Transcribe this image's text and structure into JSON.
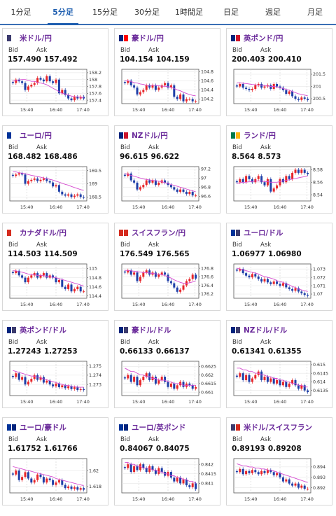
{
  "tabs": [
    "1分足",
    "5分足",
    "15分足",
    "30分足",
    "1時間足",
    "日足",
    "週足",
    "月足"
  ],
  "active_tab": 1,
  "labels": {
    "bid": "Bid",
    "ask": "Ask"
  },
  "colors": {
    "accent": "#1f5fb0",
    "up": "#e8262a",
    "down": "#1f3fa8",
    "ma": "#d54ad0",
    "name": "#6a2a9a"
  },
  "cards": [
    {
      "name": "米ドル/円",
      "bid": "157.490",
      "ask": "157.492",
      "flag": [
        "#3c3b6e",
        "#ffffff"
      ],
      "ticks": [
        "158.2",
        "158",
        "157.8",
        "157.6",
        "157.4"
      ],
      "ymin": 157.3,
      "ymax": 158.3,
      "candles": [
        157.9,
        158.0,
        157.95,
        157.9,
        157.7,
        157.8,
        157.85,
        157.9,
        158.05,
        158.0,
        157.95,
        158.1,
        157.95,
        157.9,
        158.0,
        157.6,
        157.7,
        157.55,
        157.45,
        157.4,
        157.5,
        157.45,
        157.5,
        157.45
      ],
      "ma": [
        157.95,
        157.98,
        157.99,
        158.0,
        158.0,
        157.98,
        157.95,
        157.95,
        157.92,
        157.9,
        157.88,
        157.85,
        157.8,
        157.75,
        157.7,
        157.65,
        157.6,
        157.58,
        157.55,
        157.52,
        157.5,
        157.5,
        157.48,
        157.48
      ]
    },
    {
      "name": "豪ドル/円",
      "bid": "104.154",
      "ask": "104.159",
      "flag": [
        "#00247d",
        "#ff0000"
      ],
      "ticks": [
        "104.8",
        "104.6",
        "104.4",
        "104.2"
      ],
      "ymin": 104.1,
      "ymax": 104.85,
      "candles": [
        104.55,
        104.6,
        104.5,
        104.45,
        104.3,
        104.35,
        104.4,
        104.5,
        104.45,
        104.5,
        104.4,
        104.45,
        104.5,
        104.55,
        104.45,
        104.5,
        104.25,
        104.2,
        104.3,
        104.15,
        104.2,
        104.2,
        104.15,
        104.15
      ],
      "ma": [
        104.6,
        104.6,
        104.58,
        104.56,
        104.55,
        104.53,
        104.52,
        104.5,
        104.5,
        104.5,
        104.5,
        104.49,
        104.48,
        104.48,
        104.47,
        104.46,
        104.43,
        104.4,
        104.38,
        104.35,
        104.32,
        104.3,
        104.28,
        104.27
      ]
    },
    {
      "name": "英ポンド/円",
      "bid": "200.403",
      "ask": "200.410",
      "flag": [
        "#00247d",
        "#cf142b"
      ],
      "ticks": [
        "201.5",
        "201",
        "200.5"
      ],
      "ymin": 200.3,
      "ymax": 201.7,
      "candles": [
        201.0,
        201.1,
        200.95,
        200.9,
        200.85,
        200.9,
        201.05,
        201.1,
        200.95,
        201.0,
        201.05,
        200.9,
        201.1,
        201.0,
        200.95,
        200.85,
        200.7,
        200.8,
        200.6,
        200.5,
        200.45,
        200.55,
        200.5,
        200.45
      ],
      "ma": [
        201.15,
        201.15,
        201.13,
        201.12,
        201.1,
        201.08,
        201.07,
        201.05,
        201.05,
        201.03,
        201.02,
        201.0,
        201.0,
        200.98,
        200.95,
        200.92,
        200.88,
        200.85,
        200.8,
        200.75,
        200.7,
        200.68,
        200.65,
        200.62
      ]
    },
    {
      "name": "ユーロ/円",
      "bid": "168.482",
      "ask": "168.486",
      "flag": [
        "#003399",
        "#ffffff"
      ],
      "ticks": [
        "169.5",
        "169",
        "168.5"
      ],
      "ymin": 168.35,
      "ymax": 169.65,
      "candles": [
        169.3,
        169.35,
        169.4,
        169.35,
        169.0,
        169.1,
        169.15,
        169.2,
        169.1,
        169.15,
        169.2,
        169.1,
        169.05,
        168.9,
        168.95,
        168.7,
        168.6,
        168.55,
        168.6,
        168.5,
        168.55,
        168.6,
        168.5,
        168.48
      ],
      "ma": [
        169.45,
        169.45,
        169.42,
        169.4,
        169.38,
        169.35,
        169.32,
        169.3,
        169.27,
        169.25,
        169.22,
        169.2,
        169.17,
        169.14,
        169.1,
        169.06,
        169.02,
        168.98,
        168.95,
        168.9,
        168.86,
        168.82,
        168.78,
        168.75
      ]
    },
    {
      "name": "NZドル/円",
      "bid": "96.615",
      "ask": "96.622",
      "flag": [
        "#00247d",
        "#cc142b"
      ],
      "ticks": [
        "97.2",
        "97",
        "96.8",
        "96.6"
      ],
      "ymin": 96.5,
      "ymax": 97.25,
      "candles": [
        97.05,
        97.1,
        96.95,
        96.9,
        96.75,
        96.8,
        96.85,
        96.95,
        96.9,
        96.95,
        96.85,
        96.9,
        96.95,
        96.9,
        96.85,
        96.8,
        96.75,
        96.7,
        96.75,
        96.7,
        96.65,
        96.7,
        96.62,
        96.62
      ],
      "ma": [
        97.1,
        97.08,
        97.06,
        97.04,
        97.02,
        97.0,
        96.98,
        96.97,
        96.96,
        96.95,
        96.94,
        96.93,
        96.92,
        96.9,
        96.88,
        96.86,
        96.84,
        96.82,
        96.8,
        96.78,
        96.76,
        96.74,
        96.72,
        96.7
      ]
    },
    {
      "name": "ランド/円",
      "bid": "8.564",
      "ask": "8.573",
      "flag": [
        "#007a4d",
        "#ffb612"
      ],
      "ticks": [
        "8.58",
        "8.56",
        "8.54"
      ],
      "ymin": 8.53,
      "ymax": 8.585,
      "candles": [
        8.56,
        8.565,
        8.56,
        8.57,
        8.565,
        8.56,
        8.565,
        8.57,
        8.56,
        8.555,
        8.565,
        8.545,
        8.55,
        8.555,
        8.565,
        8.56,
        8.57,
        8.565,
        8.575,
        8.58,
        8.575,
        8.58,
        8.575,
        8.573
      ],
      "ma": [
        8.558,
        8.559,
        8.56,
        8.56,
        8.561,
        8.561,
        8.562,
        8.562,
        8.562,
        8.561,
        8.561,
        8.56,
        8.56,
        8.56,
        8.561,
        8.562,
        8.563,
        8.564,
        8.565,
        8.566,
        8.567,
        8.568,
        8.569,
        8.57
      ]
    },
    {
      "name": "カナダドル/円",
      "bid": "114.503",
      "ask": "114.509",
      "flag": [
        "#d52b1e",
        "#ffffff"
      ],
      "ticks": [
        "115",
        "114.8",
        "114.6",
        "114.4"
      ],
      "ymin": 114.35,
      "ymax": 115.1,
      "candles": [
        114.9,
        114.95,
        114.85,
        114.8,
        114.7,
        114.8,
        114.85,
        114.9,
        114.8,
        114.85,
        114.9,
        114.8,
        114.85,
        114.8,
        114.7,
        114.75,
        114.6,
        114.55,
        114.65,
        114.5,
        114.55,
        114.6,
        114.5,
        114.5
      ],
      "ma": [
        114.95,
        114.95,
        114.93,
        114.92,
        114.9,
        114.88,
        114.87,
        114.86,
        114.85,
        114.85,
        114.84,
        114.83,
        114.82,
        114.81,
        114.8,
        114.78,
        114.76,
        114.74,
        114.72,
        114.7,
        114.68,
        114.66,
        114.64,
        114.62
      ]
    },
    {
      "name": "スイスフラン/円",
      "bid": "176.549",
      "ask": "176.565",
      "flag": [
        "#d52b1e",
        "#d52b1e"
      ],
      "ticks": [
        "176.8",
        "176.6",
        "176.4",
        "176.2"
      ],
      "ymin": 176.1,
      "ymax": 176.9,
      "candles": [
        176.7,
        176.75,
        176.65,
        176.7,
        176.5,
        176.6,
        176.7,
        176.75,
        176.65,
        176.7,
        176.6,
        176.65,
        176.7,
        176.65,
        176.5,
        176.45,
        176.35,
        176.25,
        176.3,
        176.4,
        176.5,
        176.55,
        176.65,
        176.56
      ],
      "ma": [
        176.75,
        176.75,
        176.74,
        176.73,
        176.72,
        176.71,
        176.7,
        176.7,
        176.69,
        176.68,
        176.67,
        176.66,
        176.65,
        176.63,
        176.6,
        176.57,
        176.53,
        176.5,
        176.47,
        176.45,
        176.45,
        176.46,
        176.48,
        176.5
      ]
    },
    {
      "name": "ユーロ/ドル",
      "bid": "1.06977",
      "ask": "1.06980",
      "flag": [
        "#003399",
        "#3c3b6e"
      ],
      "ticks": [
        "1.073",
        "1.072",
        "1.071",
        "1.07"
      ],
      "ymin": 1.0695,
      "ymax": 1.0736,
      "candles": [
        1.0728,
        1.073,
        1.0725,
        1.0722,
        1.072,
        1.0724,
        1.0721,
        1.0718,
        1.0715,
        1.0718,
        1.0714,
        1.0712,
        1.0715,
        1.0712,
        1.071,
        1.0713,
        1.0708,
        1.0706,
        1.0704,
        1.0707,
        1.0703,
        1.0701,
        1.0699,
        1.0698
      ],
      "ma": [
        1.0731,
        1.073,
        1.0729,
        1.0728,
        1.0727,
        1.0726,
        1.0725,
        1.0724,
        1.0722,
        1.0721,
        1.072,
        1.0719,
        1.0718,
        1.0716,
        1.0715,
        1.0714,
        1.0712,
        1.0711,
        1.0709,
        1.0708,
        1.0706,
        1.0705,
        1.0704,
        1.0703
      ]
    },
    {
      "name": "英ポンド/ドル",
      "bid": "1.27243",
      "ask": "1.27253",
      "flag": [
        "#00247d",
        "#3c3b6e"
      ],
      "ticks": [
        "1.275",
        "1.274",
        "1.273"
      ],
      "ymin": 1.2718,
      "ymax": 1.2755,
      "candles": [
        1.2738,
        1.2742,
        1.2735,
        1.2738,
        1.273,
        1.2733,
        1.2736,
        1.274,
        1.2735,
        1.2738,
        1.2732,
        1.2734,
        1.273,
        1.2728,
        1.2731,
        1.2727,
        1.2729,
        1.2726,
        1.2728,
        1.2725,
        1.2727,
        1.2724,
        1.2725,
        1.2724
      ],
      "ma": [
        1.2745,
        1.2744,
        1.2743,
        1.2742,
        1.2741,
        1.274,
        1.2739,
        1.2739,
        1.2738,
        1.2737,
        1.2736,
        1.2735,
        1.2734,
        1.2733,
        1.2732,
        1.2731,
        1.273,
        1.2729,
        1.2729,
        1.2728,
        1.2728,
        1.2727,
        1.2727,
        1.2727
      ]
    },
    {
      "name": "豪ドル/ドル",
      "bid": "0.66133",
      "ask": "0.66137",
      "flag": [
        "#00247d",
        "#3c3b6e"
      ],
      "ticks": [
        "0.6625",
        "0.662",
        "0.6615",
        "0.661"
      ],
      "ymin": 0.6608,
      "ymax": 0.6628,
      "candles": [
        0.6618,
        0.662,
        0.6616,
        0.6619,
        0.6614,
        0.6617,
        0.6619,
        0.6621,
        0.6617,
        0.6619,
        0.6615,
        0.6617,
        0.6619,
        0.6616,
        0.6613,
        0.6615,
        0.6612,
        0.6614,
        0.6616,
        0.6613,
        0.6615,
        0.6614,
        0.6612,
        0.6613
      ],
      "ma": [
        0.6624,
        0.6623,
        0.6622,
        0.6622,
        0.6621,
        0.662,
        0.662,
        0.6619,
        0.6619,
        0.6618,
        0.6618,
        0.6617,
        0.6617,
        0.6617,
        0.6616,
        0.6616,
        0.6615,
        0.6615,
        0.6615,
        0.6614,
        0.6614,
        0.6614,
        0.6614,
        0.6614
      ]
    },
    {
      "name": "NZドル/ドル",
      "bid": "0.61341",
      "ask": "0.61355",
      "flag": [
        "#00247d",
        "#3c3b6e"
      ],
      "ticks": [
        "0.615",
        "0.6145",
        "0.614",
        "0.6135"
      ],
      "ymin": 0.6132,
      "ymax": 0.6152,
      "candles": [
        0.6143,
        0.6145,
        0.6141,
        0.6144,
        0.614,
        0.6142,
        0.6144,
        0.6146,
        0.6141,
        0.6143,
        0.614,
        0.6142,
        0.6139,
        0.6141,
        0.6138,
        0.614,
        0.6137,
        0.6139,
        0.6141,
        0.6138,
        0.6136,
        0.6138,
        0.6135,
        0.6134
      ],
      "ma": [
        0.6148,
        0.6148,
        0.6147,
        0.6147,
        0.6146,
        0.6146,
        0.6145,
        0.6145,
        0.6144,
        0.6144,
        0.6143,
        0.6143,
        0.6142,
        0.6142,
        0.6141,
        0.6141,
        0.614,
        0.614,
        0.6139,
        0.6139,
        0.6138,
        0.6138,
        0.6137,
        0.6137
      ]
    },
    {
      "name": "ユーロ/豪ドル",
      "bid": "1.61752",
      "ask": "1.61766",
      "flag": [
        "#003399",
        "#00247d"
      ],
      "ticks": [
        "1.62",
        "1.618"
      ],
      "ymin": 1.6172,
      "ymax": 1.6215,
      "candles": [
        1.6195,
        1.62,
        1.6188,
        1.6192,
        1.6198,
        1.619,
        1.6185,
        1.6188,
        1.6195,
        1.6192,
        1.6185,
        1.619,
        1.6188,
        1.6182,
        1.6185,
        1.6188,
        1.6182,
        1.6178,
        1.618,
        1.6177,
        1.6179,
        1.6176,
        1.6178,
        1.6176
      ],
      "ma": [
        1.6205,
        1.6204,
        1.6203,
        1.6202,
        1.6201,
        1.62,
        1.6199,
        1.6198,
        1.6197,
        1.6196,
        1.6195,
        1.6194,
        1.6193,
        1.6192,
        1.619,
        1.6189,
        1.6188,
        1.6187,
        1.6186,
        1.6185,
        1.6184,
        1.6183,
        1.6182,
        1.6181
      ]
    },
    {
      "name": "ユーロ/英ポンド",
      "bid": "0.84067",
      "ask": "0.84075",
      "flag": [
        "#003399",
        "#00247d"
      ],
      "ticks": [
        "0.842",
        "0.8415",
        "0.841"
      ],
      "ymin": 0.8405,
      "ymax": 0.8423,
      "candles": [
        0.8418,
        0.842,
        0.8416,
        0.8419,
        0.8417,
        0.842,
        0.8418,
        0.8416,
        0.8419,
        0.8417,
        0.8415,
        0.8418,
        0.8416,
        0.8414,
        0.8416,
        0.8413,
        0.8411,
        0.8413,
        0.841,
        0.8412,
        0.8409,
        0.8408,
        0.841,
        0.8407
      ],
      "ma": [
        0.8421,
        0.8421,
        0.842,
        0.842,
        0.8419,
        0.8419,
        0.8418,
        0.8418,
        0.8418,
        0.8417,
        0.8417,
        0.8416,
        0.8416,
        0.8415,
        0.8415,
        0.8414,
        0.8414,
        0.8413,
        0.8413,
        0.8412,
        0.8412,
        0.8411,
        0.8411,
        0.841
      ]
    },
    {
      "name": "米ドル/スイスフラン",
      "bid": "0.89193",
      "ask": "0.89208",
      "flag": [
        "#3c3b6e",
        "#d52b1e"
      ],
      "ticks": [
        "0.894",
        "0.893",
        "0.892"
      ],
      "ymin": 0.8915,
      "ymax": 0.8948,
      "candles": [
        0.8935,
        0.8938,
        0.8933,
        0.8936,
        0.8934,
        0.8937,
        0.8935,
        0.8933,
        0.8936,
        0.8934,
        0.8937,
        0.8935,
        0.8932,
        0.8934,
        0.893,
        0.8926,
        0.8928,
        0.8924,
        0.8922,
        0.8924,
        0.892,
        0.8922,
        0.8919,
        0.8919
      ],
      "ma": [
        0.8943,
        0.8942,
        0.8941,
        0.8941,
        0.894,
        0.894,
        0.8939,
        0.8939,
        0.8938,
        0.8938,
        0.8937,
        0.8937,
        0.8936,
        0.8935,
        0.8934,
        0.8933,
        0.8932,
        0.8931,
        0.893,
        0.8929,
        0.8928,
        0.8927,
        0.8926,
        0.8925
      ]
    }
  ],
  "chart_data": {
    "type": "candlestick",
    "x_ticks": [
      "15:40",
      "16:40",
      "17:40"
    ]
  }
}
